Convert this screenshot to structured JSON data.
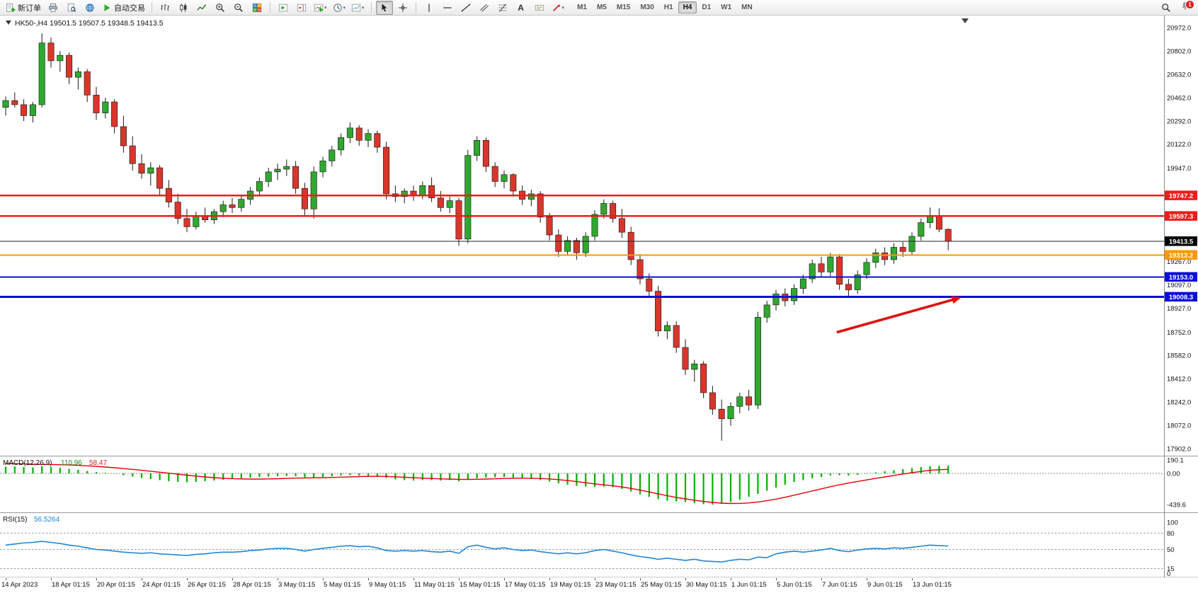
{
  "toolbar": {
    "new_order_label": "新订单",
    "autotrade_label": "自动交易",
    "text_tool_glyph": "A",
    "timeframes": [
      "M1",
      "M5",
      "M15",
      "M30",
      "H1",
      "H4",
      "D1",
      "W1",
      "MN"
    ],
    "active_timeframe": "H4",
    "notification_count": "1",
    "icons": [
      "new-order-icon",
      "print-icon",
      "print-preview-icon",
      "globe-icon",
      "autotrade-play-icon",
      "bars-chart-icon",
      "candlestick-chart-icon",
      "line-chart-icon",
      "zoom-in-icon",
      "zoom-out-icon",
      "tile-windows-icon",
      "auto-scroll-icon",
      "chart-shift-icon",
      "indicators-icon",
      "periods-clock-icon",
      "templates-icon",
      "cursor-icon",
      "crosshair-icon",
      "vertical-line-icon",
      "horizontal-line-icon",
      "trendline-icon",
      "channel-icon",
      "fibonacci-icon",
      "text-tool-icon",
      "text-label-icon",
      "arrow-tool-icon",
      "search-icon",
      "bell-icon"
    ]
  },
  "chart_data": {
    "type": "candlestick",
    "symbol": "HK50-",
    "timeframe": "H4",
    "symbol_line": "HK50-,H4  19501.5 19507.5 19348.5 19413.5",
    "current_bar": {
      "open": 19501.5,
      "high": 19507.5,
      "low": 19348.5,
      "close": 19413.5
    },
    "colors": {
      "bull": "#2fa82f",
      "bear": "#d9362b",
      "wick": "#1a1a1a",
      "macd_histogram": "#00b200",
      "macd_signal": "#e40000",
      "rsi_line": "#1e86d6",
      "annotation": "#dd1111"
    },
    "candles": [
      [
        20390,
        20470,
        20330,
        20440
      ],
      [
        20440,
        20500,
        20390,
        20410
      ],
      [
        20410,
        20450,
        20290,
        20330
      ],
      [
        20330,
        20430,
        20280,
        20410
      ],
      [
        20410,
        20930,
        20390,
        20860
      ],
      [
        20860,
        20900,
        20680,
        20730
      ],
      [
        20730,
        20800,
        20650,
        20770
      ],
      [
        20770,
        20790,
        20560,
        20610
      ],
      [
        20610,
        20680,
        20520,
        20650
      ],
      [
        20650,
        20670,
        20430,
        20480
      ],
      [
        20480,
        20540,
        20300,
        20350
      ],
      [
        20350,
        20460,
        20310,
        20430
      ],
      [
        20430,
        20450,
        20200,
        20250
      ],
      [
        20250,
        20330,
        20060,
        20110
      ],
      [
        20110,
        20180,
        19930,
        19980
      ],
      [
        19980,
        20050,
        19870,
        19910
      ],
      [
        19910,
        19990,
        19820,
        19950
      ],
      [
        19950,
        19970,
        19750,
        19800
      ],
      [
        19800,
        19860,
        19660,
        19700
      ],
      [
        19700,
        19760,
        19540,
        19580
      ],
      [
        19580,
        19650,
        19480,
        19520
      ],
      [
        19520,
        19630,
        19500,
        19600
      ],
      [
        19600,
        19660,
        19550,
        19570
      ],
      [
        19570,
        19650,
        19540,
        19630
      ],
      [
        19630,
        19710,
        19590,
        19680
      ],
      [
        19680,
        19730,
        19620,
        19660
      ],
      [
        19660,
        19750,
        19630,
        19720
      ],
      [
        19720,
        19810,
        19680,
        19780
      ],
      [
        19780,
        19880,
        19740,
        19850
      ],
      [
        19850,
        19950,
        19810,
        19920
      ],
      [
        19920,
        19980,
        19860,
        19940
      ],
      [
        19940,
        20010,
        19890,
        19960
      ],
      [
        19960,
        20000,
        19760,
        19800
      ],
      [
        19800,
        19840,
        19600,
        19650
      ],
      [
        19650,
        19960,
        19580,
        19920
      ],
      [
        19920,
        20030,
        19880,
        20000
      ],
      [
        20000,
        20110,
        19960,
        20080
      ],
      [
        20080,
        20200,
        20040,
        20170
      ],
      [
        20170,
        20280,
        20130,
        20240
      ],
      [
        20240,
        20260,
        20110,
        20150
      ],
      [
        20150,
        20230,
        20100,
        20200
      ],
      [
        20200,
        20220,
        20060,
        20100
      ],
      [
        20100,
        20140,
        19720,
        19760
      ],
      [
        19760,
        19820,
        19700,
        19740
      ],
      [
        19740,
        19800,
        19690,
        19780
      ],
      [
        19780,
        19820,
        19710,
        19750
      ],
      [
        19750,
        19850,
        19720,
        19820
      ],
      [
        19820,
        19880,
        19700,
        19730
      ],
      [
        19730,
        19780,
        19630,
        19660
      ],
      [
        19660,
        19740,
        19620,
        19710
      ],
      [
        19710,
        19730,
        19380,
        19430
      ],
      [
        19430,
        20080,
        19400,
        20040
      ],
      [
        20040,
        20180,
        20000,
        20150
      ],
      [
        20150,
        20170,
        19920,
        19960
      ],
      [
        19960,
        19990,
        19810,
        19850
      ],
      [
        19850,
        19930,
        19800,
        19900
      ],
      [
        19900,
        19910,
        19740,
        19780
      ],
      [
        19780,
        19820,
        19680,
        19720
      ],
      [
        19720,
        19790,
        19670,
        19760
      ],
      [
        19760,
        19780,
        19550,
        19590
      ],
      [
        19590,
        19620,
        19420,
        19460
      ],
      [
        19460,
        19500,
        19300,
        19340
      ],
      [
        19340,
        19450,
        19310,
        19420
      ],
      [
        19420,
        19440,
        19280,
        19330
      ],
      [
        19330,
        19480,
        19300,
        19450
      ],
      [
        19450,
        19640,
        19420,
        19610
      ],
      [
        19610,
        19720,
        19580,
        19690
      ],
      [
        19690,
        19710,
        19550,
        19580
      ],
      [
        19580,
        19650,
        19440,
        19480
      ],
      [
        19480,
        19520,
        19240,
        19280
      ],
      [
        19280,
        19320,
        19100,
        19140
      ],
      [
        19140,
        19180,
        19010,
        19050
      ],
      [
        19050,
        19090,
        18720,
        18760
      ],
      [
        18760,
        18830,
        18700,
        18800
      ],
      [
        18800,
        18830,
        18600,
        18640
      ],
      [
        18640,
        18700,
        18440,
        18480
      ],
      [
        18480,
        18550,
        18390,
        18520
      ],
      [
        18520,
        18540,
        18270,
        18310
      ],
      [
        18310,
        18360,
        18150,
        18190
      ],
      [
        18190,
        18260,
        17960,
        18120
      ],
      [
        18120,
        18240,
        18070,
        18210
      ],
      [
        18210,
        18310,
        18160,
        18280
      ],
      [
        18280,
        18330,
        18180,
        18220
      ],
      [
        18220,
        18900,
        18190,
        18860
      ],
      [
        18860,
        18980,
        18820,
        18950
      ],
      [
        18950,
        19060,
        18910,
        19030
      ],
      [
        19030,
        19070,
        18940,
        18980
      ],
      [
        18980,
        19100,
        18950,
        19070
      ],
      [
        19070,
        19170,
        19030,
        19140
      ],
      [
        19140,
        19280,
        19110,
        19250
      ],
      [
        19250,
        19300,
        19150,
        19190
      ],
      [
        19190,
        19330,
        19160,
        19300
      ],
      [
        19300,
        19320,
        19060,
        19100
      ],
      [
        19100,
        19140,
        19010,
        19060
      ],
      [
        19060,
        19200,
        19030,
        19170
      ],
      [
        19170,
        19290,
        19140,
        19260
      ],
      [
        19260,
        19360,
        19220,
        19330
      ],
      [
        19330,
        19370,
        19240,
        19280
      ],
      [
        19280,
        19400,
        19250,
        19370
      ],
      [
        19370,
        19410,
        19300,
        19340
      ],
      [
        19340,
        19480,
        19310,
        19450
      ],
      [
        19450,
        19580,
        19420,
        19550
      ],
      [
        19550,
        19660,
        19510,
        19600
      ],
      [
        19600,
        19655,
        19480,
        19501.5
      ],
      [
        19501.5,
        19507.5,
        19348.5,
        19413.5
      ]
    ],
    "levels": [
      {
        "price": 19747.2,
        "color": "#ee1c1c",
        "width": 2.4
      },
      {
        "price": 19597.3,
        "color": "#ee1c1c",
        "width": 2.4
      },
      {
        "price": 19413.5,
        "color": "#222222",
        "width": 1
      },
      {
        "price": 19313.2,
        "color": "#ff9800",
        "width": 2.4
      },
      {
        "price": 19153.0,
        "color": "#0c0cdd",
        "width": 2.4
      },
      {
        "price": 19008.3,
        "color": "#0c0cdd",
        "width": 2.8
      }
    ],
    "price_badges": [
      {
        "value": "19747.2",
        "bg": "#ee1c1c"
      },
      {
        "value": "19597.3",
        "bg": "#ee1c1c"
      },
      {
        "value": "19413.5",
        "bg": "#000000"
      },
      {
        "value": "19313.2",
        "bg": "#ff9800"
      },
      {
        "value": "19153.0",
        "bg": "#0c0cdd"
      },
      {
        "value": "19008.3",
        "bg": "#0c0cdd"
      }
    ],
    "price_axis_labels": [
      "20972.0",
      "20802.0",
      "20632.0",
      "20462.0",
      "20292.0",
      "20122.0",
      "19947.0",
      "19267.0",
      "19097.0",
      "18927.0",
      "18752.0",
      "18582.0",
      "18412.0",
      "18242.0",
      "18072.0",
      "17902.0"
    ],
    "time_axis_labels": [
      "14 Apr 2023",
      "18 Apr 01:15",
      "20 Apr 01:15",
      "24 Apr 01:15",
      "26 Apr 01:15",
      "28 Apr 01:15",
      "3 May 01:15",
      "5 May 01:15",
      "9 May 01:15",
      "11 May 01:15",
      "15 May 01:15",
      "17 May 01:15",
      "19 May 01:15",
      "23 May 01:15",
      "25 May 01:15",
      "30 May 01:15",
      "1 Jun 01:15",
      "5 Jun 01:15",
      "7 Jun 01:15",
      "9 Jun 01:15",
      "13 Jun 01:15"
    ],
    "annotations": [
      {
        "type": "arrow",
        "color": "#dd1111",
        "from": {
          "x_index": 91.7,
          "price": 18750
        },
        "to": {
          "x_index": 105.5,
          "price": 19006
        }
      }
    ],
    "indicators": {
      "macd": {
        "name": "MACD(12,26,9)",
        "main_value": "110.96",
        "signal_value": "58.47",
        "scale_labels": [
          {
            "label": "190.1",
            "value": 190.1
          },
          {
            "label": "0.00",
            "value": 0
          },
          {
            "label": "-439.6",
            "value": -439.6
          }
        ],
        "histogram": [
          95,
          100,
          90,
          85,
          105,
          95,
          80,
          65,
          50,
          35,
          20,
          10,
          -5,
          -25,
          -45,
          -65,
          -80,
          -95,
          -110,
          -120,
          -125,
          -120,
          -110,
          -100,
          -90,
          -80,
          -70,
          -60,
          -50,
          -45,
          -40,
          -35,
          -40,
          -55,
          -60,
          -50,
          -40,
          -30,
          -25,
          -30,
          -35,
          -45,
          -65,
          -85,
          -95,
          -100,
          -95,
          -95,
          -100,
          -95,
          -110,
          -90,
          -70,
          -60,
          -55,
          -50,
          -60,
          -70,
          -80,
          -95,
          -115,
          -140,
          -160,
          -175,
          -185,
          -190,
          -185,
          -195,
          -220,
          -255,
          -295,
          -330,
          -365,
          -385,
          -395,
          -405,
          -420,
          -435,
          -440,
          -430,
          -405,
          -370,
          -330,
          -290,
          -245,
          -200,
          -160,
          -120,
          -95,
          -70,
          -50,
          -30,
          -25,
          -30,
          -20,
          -5,
          15,
          30,
          45,
          60,
          75,
          90,
          102,
          108,
          111
        ],
        "signal": [
          140,
          138,
          135,
          131,
          128,
          126,
          123,
          119,
          114,
          107,
          99,
          90,
          80,
          69,
          57,
          44,
          31,
          17,
          3,
          -11,
          -25,
          -38,
          -50,
          -60,
          -68,
          -74,
          -78,
          -80,
          -80,
          -78,
          -75,
          -71,
          -67,
          -64,
          -62,
          -60,
          -57,
          -53,
          -49,
          -45,
          -42,
          -41,
          -43,
          -48,
          -54,
          -61,
          -67,
          -72,
          -77,
          -80,
          -84,
          -85,
          -83,
          -80,
          -76,
          -72,
          -69,
          -68,
          -69,
          -72,
          -78,
          -88,
          -101,
          -116,
          -132,
          -148,
          -162,
          -176,
          -192,
          -212,
          -236,
          -262,
          -289,
          -315,
          -339,
          -360,
          -379,
          -396,
          -410,
          -420,
          -425,
          -424,
          -417,
          -404,
          -386,
          -363,
          -337,
          -308,
          -278,
          -248,
          -218,
          -188,
          -160,
          -136,
          -114,
          -92,
          -71,
          -50,
          -29,
          -9,
          10,
          28,
          44,
          52,
          58
        ]
      },
      "rsi": {
        "name": "RSI(15)",
        "value": "56.5264",
        "levels": [
          80,
          50,
          15
        ],
        "range": [
          0,
          100
        ],
        "scale_labels": [
          {
            "label": "100",
            "value": 100
          },
          {
            "label": "80",
            "value": 80
          },
          {
            "label": "50",
            "value": 50
          },
          {
            "label": "15",
            "value": 15
          },
          {
            "label": "0",
            "value": 0
          }
        ],
        "values": [
          58,
          60,
          62,
          63,
          65,
          63,
          61,
          58,
          56,
          53,
          50,
          49,
          47,
          45,
          44,
          43,
          44,
          42,
          41,
          40,
          39,
          41,
          42,
          44,
          45,
          45,
          46,
          48,
          49,
          51,
          52,
          52,
          50,
          47,
          50,
          52,
          54,
          56,
          57,
          55,
          56,
          53,
          48,
          47,
          48,
          47,
          48,
          46,
          45,
          47,
          43,
          55,
          58,
          54,
          51,
          53,
          50,
          48,
          49,
          46,
          44,
          42,
          44,
          42,
          44,
          48,
          50,
          47,
          44,
          40,
          37,
          35,
          32,
          34,
          32,
          30,
          32,
          29,
          28,
          27,
          30,
          32,
          31,
          36,
          35,
          42,
          45,
          47,
          45,
          47,
          49,
          52,
          48,
          46,
          49,
          51,
          52,
          51,
          53,
          52,
          54,
          56,
          58,
          57,
          56.5
        ]
      }
    }
  }
}
